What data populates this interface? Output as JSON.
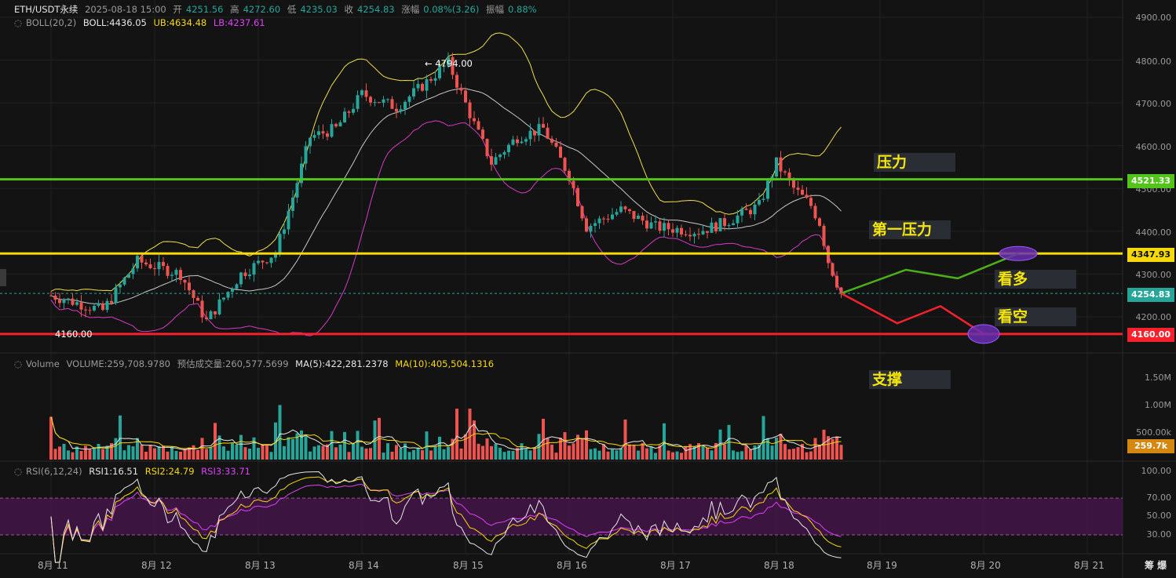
{
  "header": {
    "symbol": "ETH/USDT永续",
    "datetime": "2025-08-18 15:00",
    "open_label": "开",
    "open": "4251.56",
    "high_label": "高",
    "high": "4272.60",
    "low_label": "低",
    "low": "4235.03",
    "close_label": "收",
    "close": "4254.83",
    "change_label": "涨幅",
    "change": "0.08%(3.26)",
    "amp_label": "振幅",
    "amp": "0.88%"
  },
  "boll": {
    "name": "BOLL(20,2)",
    "mid": "BOLL:4436.05",
    "ub": "UB:4634.48",
    "lb": "LB:4237.61"
  },
  "volume": {
    "name": "Volume",
    "vol": "VOLUME:259,708.9780",
    "est": "预估成交量:260,577.5699",
    "ma5": "MA(5):422,281.2378",
    "ma10": "MA(10):405,504.1316"
  },
  "rsi": {
    "name": "RSI(6,12,24)",
    "rsi1": "RSI1:16.51",
    "rsi2": "RSI2:24.79",
    "rsi3": "RSI3:33.71"
  },
  "annotations": {
    "resist": "压力",
    "first_resist": "第一压力",
    "bull": "看多",
    "bear": "看空",
    "support": "支撑"
  },
  "price_axis": [
    "4900.00",
    "4800.00",
    "4700.00",
    "4600.00",
    "4500.00",
    "4400.00",
    "4300.00",
    "4200.00"
  ],
  "price_boxes": {
    "green_line": "4521.33",
    "yellow_line": "4347.93",
    "last": "4254.83",
    "red_line": "4160.00"
  },
  "volume_axis": [
    "1.50M",
    "1.00M",
    "500.00k"
  ],
  "volume_box": "259.7k",
  "rsi_axis": [
    "100.00",
    "70.00",
    "50.00",
    "30.00"
  ],
  "x_axis": [
    "8月 11",
    "8月 12",
    "8月 13",
    "8月 14",
    "8月 15",
    "8月 16",
    "8月 17",
    "8月 18",
    "8月 19",
    "8月 20",
    "8月 21"
  ],
  "high_marker": "4794.00",
  "low_marker": "4160.00",
  "footer_icons": "筹  爆",
  "colors": {
    "up": "#26a69a",
    "down": "#ef5350",
    "green_line": "#52c41a",
    "yellow_line": "#f5d90a",
    "red_line": "#f5222d",
    "ub": "#f0e04a",
    "lb": "#d63ac8",
    "mid": "#c8c8c8"
  },
  "chart_data": {
    "type": "candlestick",
    "interval": "1h",
    "x_range": [
      "8月 11",
      "8月 21"
    ],
    "ylim": [
      4150,
      4900
    ],
    "horizontal_lines": [
      {
        "price": 4521.33,
        "color": "green"
      },
      {
        "price": 4347.93,
        "color": "yellow"
      },
      {
        "price": 4160.0,
        "color": "red"
      }
    ],
    "close_path_approx": [
      [
        "8月 11 00:00",
        4250
      ],
      [
        "8月 11 12:00",
        4215
      ],
      [
        "8月 11 20:00",
        4330
      ],
      [
        "8月 12 06:00",
        4300
      ],
      [
        "8月 12 12:00",
        4190
      ],
      [
        "8月 12 20:00",
        4300
      ],
      [
        "8月 13 04:00",
        4350
      ],
      [
        "8月 13 08:00",
        4480
      ],
      [
        "8月 13 12:00",
        4620
      ],
      [
        "8月 13 18:00",
        4640
      ],
      [
        "8月 14 00:00",
        4720
      ],
      [
        "8月 14 08:00",
        4690
      ],
      [
        "8月 14 14:00",
        4740
      ],
      [
        "8月 14 20:00",
        4794
      ],
      [
        "8月 15 02:00",
        4650
      ],
      [
        "8月 15 06:00",
        4560
      ],
      [
        "8月 15 12:00",
        4620
      ],
      [
        "8月 15 18:00",
        4640
      ],
      [
        "8月 16 00:00",
        4530
      ],
      [
        "8月 16 04:00",
        4410
      ],
      [
        "8月 16 12:00",
        4450
      ],
      [
        "8月 16 20:00",
        4410
      ],
      [
        "8月 17 06:00",
        4400
      ],
      [
        "8月 17 12:00",
        4420
      ],
      [
        "8月 17 20:00",
        4460
      ],
      [
        "8月 18 00:00",
        4560
      ],
      [
        "8月 18 04:00",
        4500
      ],
      [
        "8月 18 08:00",
        4460
      ],
      [
        "8月 18 10:00",
        4420
      ],
      [
        "8月 18 12:00",
        4330
      ],
      [
        "8月 18 15:00",
        4254.83
      ]
    ],
    "projections": [
      {
        "name": "看多",
        "points": [
          [
            "8月 18 15:00",
            4254.83
          ],
          [
            "8月 19 06:00",
            4310
          ],
          [
            "8月 19 18:00",
            4290
          ],
          [
            "8月 20 08:00",
            4347.93
          ]
        ]
      },
      {
        "name": "看空",
        "points": [
          [
            "8月 18 15:00",
            4254.83
          ],
          [
            "8月 19 04:00",
            4185
          ],
          [
            "8月 19 14:00",
            4225
          ],
          [
            "8月 20 00:00",
            4160
          ]
        ]
      }
    ]
  }
}
